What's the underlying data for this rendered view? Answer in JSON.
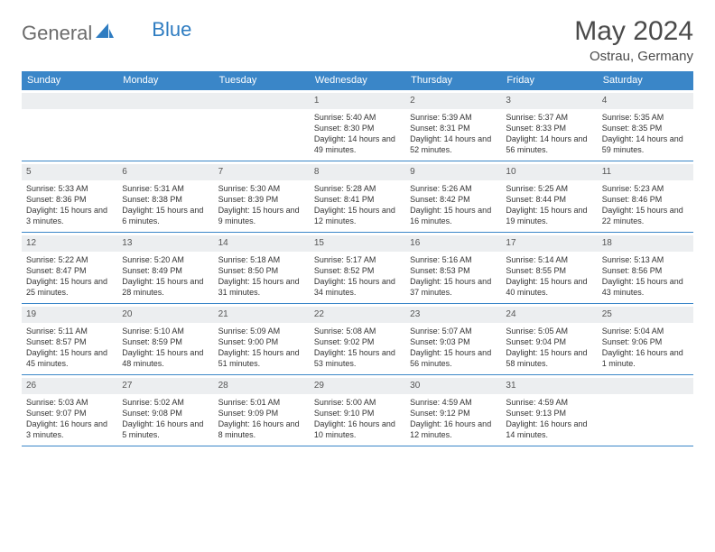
{
  "brand": {
    "word1": "General",
    "word2": "Blue"
  },
  "title": "May 2024",
  "location": "Ostrau, Germany",
  "colors": {
    "header_bg": "#3a86c8",
    "header_text": "#ffffff",
    "daynum_bg": "#eceef0",
    "border": "#3a86c8",
    "logo_gray": "#6b6b6b",
    "logo_blue": "#2e7cc1"
  },
  "day_names": [
    "Sunday",
    "Monday",
    "Tuesday",
    "Wednesday",
    "Thursday",
    "Friday",
    "Saturday"
  ],
  "weeks": [
    [
      {
        "num": "",
        "sunrise": "",
        "sunset": "",
        "daylight": ""
      },
      {
        "num": "",
        "sunrise": "",
        "sunset": "",
        "daylight": ""
      },
      {
        "num": "",
        "sunrise": "",
        "sunset": "",
        "daylight": ""
      },
      {
        "num": "1",
        "sunrise": "Sunrise: 5:40 AM",
        "sunset": "Sunset: 8:30 PM",
        "daylight": "Daylight: 14 hours and 49 minutes."
      },
      {
        "num": "2",
        "sunrise": "Sunrise: 5:39 AM",
        "sunset": "Sunset: 8:31 PM",
        "daylight": "Daylight: 14 hours and 52 minutes."
      },
      {
        "num": "3",
        "sunrise": "Sunrise: 5:37 AM",
        "sunset": "Sunset: 8:33 PM",
        "daylight": "Daylight: 14 hours and 56 minutes."
      },
      {
        "num": "4",
        "sunrise": "Sunrise: 5:35 AM",
        "sunset": "Sunset: 8:35 PM",
        "daylight": "Daylight: 14 hours and 59 minutes."
      }
    ],
    [
      {
        "num": "5",
        "sunrise": "Sunrise: 5:33 AM",
        "sunset": "Sunset: 8:36 PM",
        "daylight": "Daylight: 15 hours and 3 minutes."
      },
      {
        "num": "6",
        "sunrise": "Sunrise: 5:31 AM",
        "sunset": "Sunset: 8:38 PM",
        "daylight": "Daylight: 15 hours and 6 minutes."
      },
      {
        "num": "7",
        "sunrise": "Sunrise: 5:30 AM",
        "sunset": "Sunset: 8:39 PM",
        "daylight": "Daylight: 15 hours and 9 minutes."
      },
      {
        "num": "8",
        "sunrise": "Sunrise: 5:28 AM",
        "sunset": "Sunset: 8:41 PM",
        "daylight": "Daylight: 15 hours and 12 minutes."
      },
      {
        "num": "9",
        "sunrise": "Sunrise: 5:26 AM",
        "sunset": "Sunset: 8:42 PM",
        "daylight": "Daylight: 15 hours and 16 minutes."
      },
      {
        "num": "10",
        "sunrise": "Sunrise: 5:25 AM",
        "sunset": "Sunset: 8:44 PM",
        "daylight": "Daylight: 15 hours and 19 minutes."
      },
      {
        "num": "11",
        "sunrise": "Sunrise: 5:23 AM",
        "sunset": "Sunset: 8:46 PM",
        "daylight": "Daylight: 15 hours and 22 minutes."
      }
    ],
    [
      {
        "num": "12",
        "sunrise": "Sunrise: 5:22 AM",
        "sunset": "Sunset: 8:47 PM",
        "daylight": "Daylight: 15 hours and 25 minutes."
      },
      {
        "num": "13",
        "sunrise": "Sunrise: 5:20 AM",
        "sunset": "Sunset: 8:49 PM",
        "daylight": "Daylight: 15 hours and 28 minutes."
      },
      {
        "num": "14",
        "sunrise": "Sunrise: 5:18 AM",
        "sunset": "Sunset: 8:50 PM",
        "daylight": "Daylight: 15 hours and 31 minutes."
      },
      {
        "num": "15",
        "sunrise": "Sunrise: 5:17 AM",
        "sunset": "Sunset: 8:52 PM",
        "daylight": "Daylight: 15 hours and 34 minutes."
      },
      {
        "num": "16",
        "sunrise": "Sunrise: 5:16 AM",
        "sunset": "Sunset: 8:53 PM",
        "daylight": "Daylight: 15 hours and 37 minutes."
      },
      {
        "num": "17",
        "sunrise": "Sunrise: 5:14 AM",
        "sunset": "Sunset: 8:55 PM",
        "daylight": "Daylight: 15 hours and 40 minutes."
      },
      {
        "num": "18",
        "sunrise": "Sunrise: 5:13 AM",
        "sunset": "Sunset: 8:56 PM",
        "daylight": "Daylight: 15 hours and 43 minutes."
      }
    ],
    [
      {
        "num": "19",
        "sunrise": "Sunrise: 5:11 AM",
        "sunset": "Sunset: 8:57 PM",
        "daylight": "Daylight: 15 hours and 45 minutes."
      },
      {
        "num": "20",
        "sunrise": "Sunrise: 5:10 AM",
        "sunset": "Sunset: 8:59 PM",
        "daylight": "Daylight: 15 hours and 48 minutes."
      },
      {
        "num": "21",
        "sunrise": "Sunrise: 5:09 AM",
        "sunset": "Sunset: 9:00 PM",
        "daylight": "Daylight: 15 hours and 51 minutes."
      },
      {
        "num": "22",
        "sunrise": "Sunrise: 5:08 AM",
        "sunset": "Sunset: 9:02 PM",
        "daylight": "Daylight: 15 hours and 53 minutes."
      },
      {
        "num": "23",
        "sunrise": "Sunrise: 5:07 AM",
        "sunset": "Sunset: 9:03 PM",
        "daylight": "Daylight: 15 hours and 56 minutes."
      },
      {
        "num": "24",
        "sunrise": "Sunrise: 5:05 AM",
        "sunset": "Sunset: 9:04 PM",
        "daylight": "Daylight: 15 hours and 58 minutes."
      },
      {
        "num": "25",
        "sunrise": "Sunrise: 5:04 AM",
        "sunset": "Sunset: 9:06 PM",
        "daylight": "Daylight: 16 hours and 1 minute."
      }
    ],
    [
      {
        "num": "26",
        "sunrise": "Sunrise: 5:03 AM",
        "sunset": "Sunset: 9:07 PM",
        "daylight": "Daylight: 16 hours and 3 minutes."
      },
      {
        "num": "27",
        "sunrise": "Sunrise: 5:02 AM",
        "sunset": "Sunset: 9:08 PM",
        "daylight": "Daylight: 16 hours and 5 minutes."
      },
      {
        "num": "28",
        "sunrise": "Sunrise: 5:01 AM",
        "sunset": "Sunset: 9:09 PM",
        "daylight": "Daylight: 16 hours and 8 minutes."
      },
      {
        "num": "29",
        "sunrise": "Sunrise: 5:00 AM",
        "sunset": "Sunset: 9:10 PM",
        "daylight": "Daylight: 16 hours and 10 minutes."
      },
      {
        "num": "30",
        "sunrise": "Sunrise: 4:59 AM",
        "sunset": "Sunset: 9:12 PM",
        "daylight": "Daylight: 16 hours and 12 minutes."
      },
      {
        "num": "31",
        "sunrise": "Sunrise: 4:59 AM",
        "sunset": "Sunset: 9:13 PM",
        "daylight": "Daylight: 16 hours and 14 minutes."
      },
      {
        "num": "",
        "sunrise": "",
        "sunset": "",
        "daylight": ""
      }
    ]
  ]
}
